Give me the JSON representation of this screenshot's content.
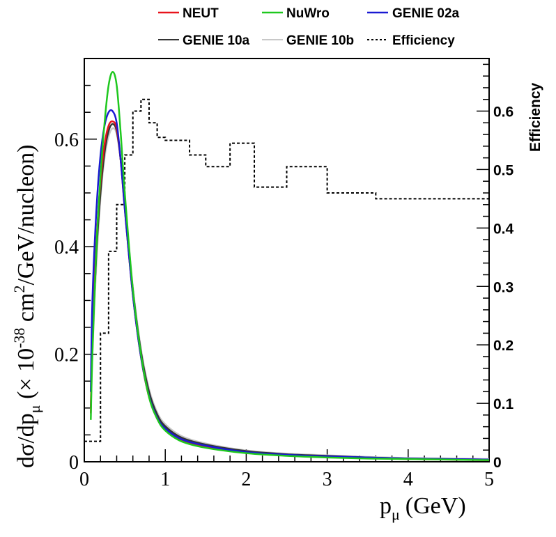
{
  "chart_data": {
    "type": "line",
    "x_axis": {
      "label_main": "p",
      "label_sub": "μ",
      "label_unit": "(GeV)",
      "range": [
        0,
        5
      ],
      "ticks": [
        0,
        1,
        2,
        3,
        4,
        5
      ],
      "tick_labels": [
        "0",
        "1",
        "2",
        "3",
        "4",
        "5"
      ]
    },
    "y_axis_left": {
      "label_a": "dσ/dp",
      "label_a_sub": "μ",
      "label_b": " (× 10",
      "label_b_sup": "-38",
      "label_c": " cm",
      "label_c_sup": "2",
      "label_d": "/GeV/nucleon)",
      "range": [
        0,
        0.75
      ],
      "ticks": [
        0,
        0.2,
        0.4,
        0.6
      ],
      "tick_labels": [
        "0",
        "0.2",
        "0.4",
        "0.6"
      ]
    },
    "y_axis_right": {
      "label": "Efficiency",
      "range": [
        0,
        0.69
      ],
      "ticks": [
        0,
        0.1,
        0.2,
        0.3,
        0.4,
        0.5,
        0.6
      ],
      "tick_labels": [
        "0",
        "0.1",
        "0.2",
        "0.3",
        "0.4",
        "0.5",
        "0.6"
      ]
    },
    "legend": {
      "placement": "top, above plot",
      "entries": [
        {
          "name": "NEUT",
          "color": "#e8141c",
          "style": "solid"
        },
        {
          "name": "NuWro",
          "color": "#1ec81e",
          "style": "solid"
        },
        {
          "name": "GENIE 02a",
          "color": "#1a1ad2",
          "style": "solid"
        },
        {
          "name": "GENIE 10a",
          "color": "#333333",
          "style": "solid"
        },
        {
          "name": "GENIE 10b",
          "color": "#c8c8c8",
          "style": "solid"
        },
        {
          "name": "Efficiency",
          "color": "#000000",
          "style": "dotted"
        }
      ]
    },
    "series": [
      {
        "name": "NEUT",
        "color": "#e8141c",
        "x": [
          0.08,
          0.1,
          0.15,
          0.2,
          0.25,
          0.3,
          0.35,
          0.4,
          0.45,
          0.5,
          0.6,
          0.7,
          0.8,
          0.9,
          1.0,
          1.2,
          1.5,
          2.0,
          2.5,
          3.0,
          3.5,
          4.0,
          4.5,
          5.0
        ],
        "y": [
          0.09,
          0.24,
          0.41,
          0.52,
          0.59,
          0.625,
          0.633,
          0.62,
          0.56,
          0.47,
          0.31,
          0.195,
          0.12,
          0.08,
          0.06,
          0.04,
          0.028,
          0.017,
          0.012,
          0.009,
          0.007,
          0.005,
          0.004,
          0.003
        ]
      },
      {
        "name": "NuWro",
        "color": "#1ec81e",
        "x": [
          0.08,
          0.1,
          0.15,
          0.2,
          0.25,
          0.3,
          0.35,
          0.4,
          0.45,
          0.5,
          0.6,
          0.7,
          0.8,
          0.9,
          1.0,
          1.2,
          1.5,
          2.0,
          2.5,
          3.0,
          3.5,
          4.0,
          4.5,
          5.0
        ],
        "y": [
          0.078,
          0.2,
          0.4,
          0.53,
          0.63,
          0.7,
          0.725,
          0.7,
          0.61,
          0.5,
          0.32,
          0.2,
          0.12,
          0.08,
          0.058,
          0.038,
          0.026,
          0.016,
          0.011,
          0.008,
          0.006,
          0.005,
          0.004,
          0.003
        ]
      },
      {
        "name": "GENIE 02a",
        "color": "#1a1ad2",
        "x": [
          0.08,
          0.1,
          0.15,
          0.2,
          0.25,
          0.3,
          0.35,
          0.4,
          0.45,
          0.5,
          0.6,
          0.7,
          0.8,
          0.9,
          1.0,
          1.2,
          1.5,
          2.0,
          2.5,
          3.0,
          3.5,
          4.0,
          4.5,
          5.0
        ],
        "y": [
          0.13,
          0.3,
          0.47,
          0.57,
          0.625,
          0.65,
          0.652,
          0.63,
          0.56,
          0.47,
          0.31,
          0.195,
          0.122,
          0.082,
          0.062,
          0.042,
          0.03,
          0.018,
          0.013,
          0.01,
          0.008,
          0.006,
          0.005,
          0.004
        ]
      },
      {
        "name": "GENIE 10a",
        "color": "#333333",
        "x": [
          0.08,
          0.1,
          0.15,
          0.2,
          0.25,
          0.3,
          0.35,
          0.4,
          0.45,
          0.5,
          0.6,
          0.7,
          0.8,
          0.9,
          1.0,
          1.2,
          1.5,
          2.0,
          2.5,
          3.0,
          3.5,
          4.0,
          4.5,
          5.0
        ],
        "y": [
          0.1,
          0.22,
          0.39,
          0.5,
          0.575,
          0.615,
          0.628,
          0.615,
          0.56,
          0.475,
          0.32,
          0.205,
          0.13,
          0.088,
          0.066,
          0.045,
          0.032,
          0.02,
          0.014,
          0.011,
          0.008,
          0.006,
          0.005,
          0.004
        ]
      },
      {
        "name": "GENIE 10b",
        "color": "#c8c8c8",
        "x": [
          0.08,
          0.1,
          0.15,
          0.2,
          0.25,
          0.3,
          0.35,
          0.4,
          0.45,
          0.5,
          0.6,
          0.7,
          0.8,
          0.9,
          1.0,
          1.2,
          1.5,
          2.0,
          2.5,
          3.0,
          3.5,
          4.0,
          4.5,
          5.0
        ],
        "y": [
          0.09,
          0.2,
          0.37,
          0.49,
          0.565,
          0.605,
          0.62,
          0.61,
          0.56,
          0.48,
          0.325,
          0.21,
          0.135,
          0.092,
          0.07,
          0.048,
          0.034,
          0.021,
          0.015,
          0.012,
          0.009,
          0.007,
          0.006,
          0.005
        ]
      }
    ],
    "efficiency_histogram": {
      "name": "Efficiency",
      "color": "#000000",
      "style": "dotted",
      "bins": [
        {
          "lo": 0.0,
          "hi": 0.2,
          "value": 0.035
        },
        {
          "lo": 0.2,
          "hi": 0.3,
          "value": 0.22
        },
        {
          "lo": 0.3,
          "hi": 0.4,
          "value": 0.36
        },
        {
          "lo": 0.4,
          "hi": 0.5,
          "value": 0.44
        },
        {
          "lo": 0.5,
          "hi": 0.6,
          "value": 0.525
        },
        {
          "lo": 0.6,
          "hi": 0.7,
          "value": 0.6
        },
        {
          "lo": 0.7,
          "hi": 0.8,
          "value": 0.62
        },
        {
          "lo": 0.8,
          "hi": 0.9,
          "value": 0.58
        },
        {
          "lo": 0.9,
          "hi": 1.0,
          "value": 0.555
        },
        {
          "lo": 1.0,
          "hi": 1.3,
          "value": 0.55
        },
        {
          "lo": 1.3,
          "hi": 1.5,
          "value": 0.525
        },
        {
          "lo": 1.5,
          "hi": 1.8,
          "value": 0.505
        },
        {
          "lo": 1.8,
          "hi": 2.1,
          "value": 0.545
        },
        {
          "lo": 2.1,
          "hi": 2.5,
          "value": 0.47
        },
        {
          "lo": 2.5,
          "hi": 3.0,
          "value": 0.505
        },
        {
          "lo": 3.0,
          "hi": 3.6,
          "value": 0.46
        },
        {
          "lo": 3.6,
          "hi": 5.0,
          "value": 0.45
        }
      ]
    }
  }
}
